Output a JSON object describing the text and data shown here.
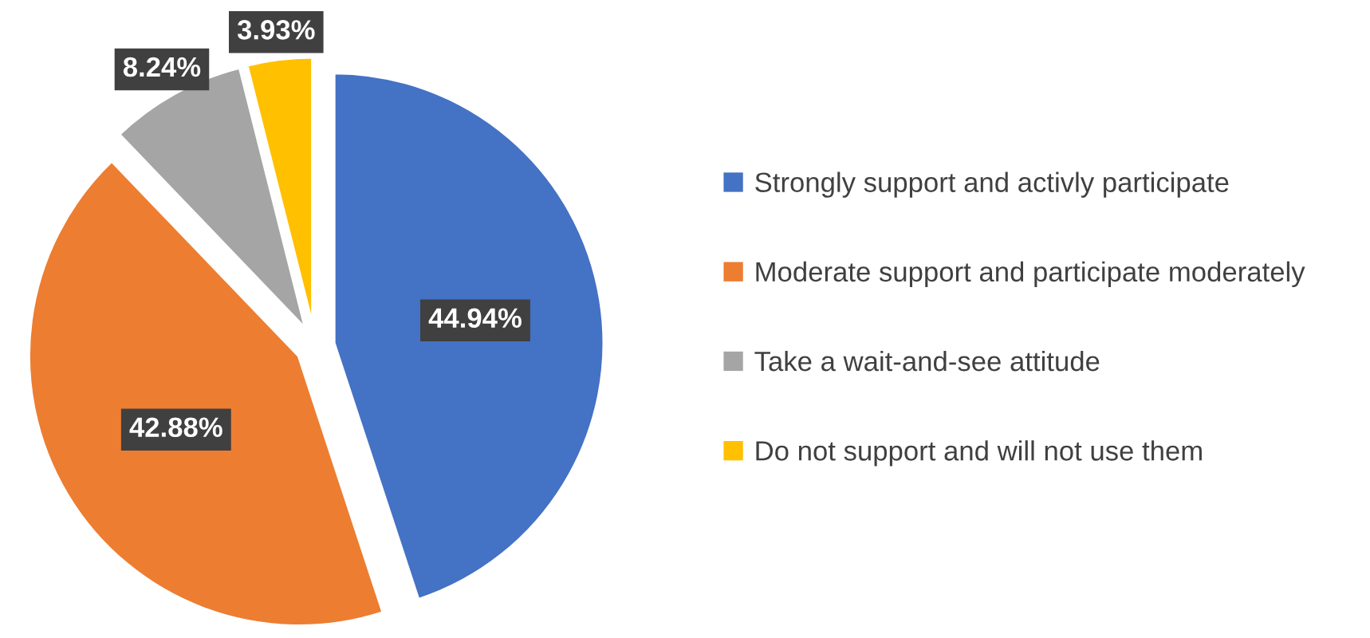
{
  "chart_data": {
    "type": "pie",
    "categories": [
      "Strongly support and activly participate",
      "Moderate support and participate moderately",
      "Take a wait-and-see attitude",
      "Do not support and will not use them"
    ],
    "values": [
      44.94,
      42.88,
      8.24,
      3.93
    ],
    "value_labels": [
      "44.94%",
      "42.88%",
      "8.24%",
      "3.93%"
    ],
    "colors": [
      "#4472c4",
      "#ed7d31",
      "#a5a5a5",
      "#ffc000"
    ],
    "legend": "right"
  }
}
